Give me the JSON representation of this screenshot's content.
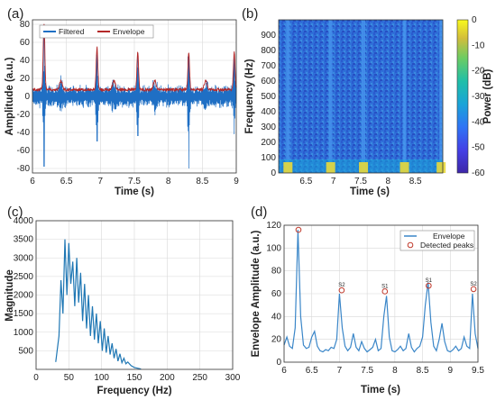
{
  "colors": {
    "filtered": "#1f6fc4",
    "envelope": "#b42828",
    "spectrum": "#1f77b4",
    "env_d": "#3a86c8",
    "peak_marker": "#c0392b"
  },
  "chart_data": [
    {
      "id": "a",
      "panel_label": "(a)",
      "type": "line",
      "xlabel": "Time (s)",
      "ylabel": "Amplitude (a.u.)",
      "xlim": [
        6,
        9
      ],
      "ylim": [
        -85,
        85
      ],
      "xticks": [
        "6",
        "6.5",
        "7",
        "7.5",
        "8",
        "8.5",
        "9"
      ],
      "yticks": [
        "-80",
        "-60",
        "-40",
        "-20",
        "0",
        "20",
        "40",
        "60",
        "80"
      ],
      "grid": true,
      "legend": "top-left",
      "beats": [
        {
          "t": 6.17,
          "pos": 80,
          "neg": -78
        },
        {
          "t": 6.95,
          "pos": 53,
          "neg": -50
        },
        {
          "t": 7.55,
          "pos": 48,
          "neg": -44
        },
        {
          "t": 8.3,
          "pos": 46,
          "neg": -80
        },
        {
          "t": 8.97,
          "pos": 47,
          "neg": -42
        }
      ],
      "series": [
        {
          "name": "Filtered"
        },
        {
          "name": "Envelope"
        }
      ]
    },
    {
      "id": "b",
      "panel_label": "(b)",
      "type": "heatmap",
      "xlabel": "Time (s)",
      "ylabel": "Frequency (Hz)",
      "xlim": [
        6,
        9
      ],
      "ylim": [
        0,
        1000
      ],
      "xticks": [
        "6.5",
        "7",
        "7.5",
        "8",
        "8.5"
      ],
      "yticks": [
        "0",
        "100",
        "200",
        "300",
        "400",
        "500",
        "600",
        "700",
        "800",
        "900"
      ],
      "colorbar": {
        "label": "Power (dB)",
        "range": [
          -60,
          0
        ],
        "ticks": [
          "0",
          "-10",
          "-20",
          "-30",
          "-40",
          "-50",
          "-60"
        ]
      },
      "vertical_streaks_s": [
        6.17,
        6.95,
        7.55,
        8.3,
        8.97
      ]
    },
    {
      "id": "c",
      "panel_label": "(c)",
      "type": "line",
      "xlabel": "Frequency (Hz)",
      "ylabel": "Magnitude",
      "xlim": [
        0,
        300
      ],
      "ylim": [
        0,
        4000
      ],
      "xticks": [
        "0",
        "50",
        "100",
        "150",
        "200",
        "250",
        "300"
      ],
      "yticks": [
        "500",
        "1000",
        "1500",
        "2000",
        "2500",
        "3000",
        "3500",
        "4000"
      ],
      "grid": true,
      "x": [
        30,
        35,
        38,
        41,
        44,
        47,
        50,
        53,
        56,
        59,
        62,
        65,
        68,
        71,
        74,
        77,
        80,
        83,
        86,
        89,
        92,
        95,
        98,
        101,
        104,
        107,
        110,
        113,
        116,
        119,
        122,
        125,
        128,
        131,
        134,
        137,
        140,
        145,
        150,
        160
      ],
      "y": [
        200,
        900,
        2400,
        1500,
        3500,
        2000,
        3400,
        2300,
        2900,
        1700,
        3000,
        1800,
        2600,
        1300,
        2300,
        1100,
        2000,
        900,
        1700,
        800,
        1500,
        700,
        1300,
        500,
        1100,
        450,
        900,
        400,
        700,
        300,
        550,
        220,
        420,
        180,
        300,
        150,
        200,
        100,
        50,
        10
      ]
    },
    {
      "id": "d",
      "panel_label": "(d)",
      "type": "line",
      "xlabel": "Time (s)",
      "ylabel": "Envelope Amplitude (a.u.)",
      "xlim": [
        6,
        9.5
      ],
      "ylim": [
        0,
        120
      ],
      "xticks": [
        "6",
        "6.5",
        "7",
        "7.5",
        "8",
        "8.5",
        "9",
        "9.5"
      ],
      "yticks": [
        "0",
        "20",
        "40",
        "60",
        "80",
        "100",
        "120"
      ],
      "grid": true,
      "legend": "top-right",
      "series": [
        {
          "name": "Envelope",
          "x": [
            6.0,
            6.05,
            6.1,
            6.15,
            6.2,
            6.25,
            6.3,
            6.35,
            6.4,
            6.45,
            6.5,
            6.55,
            6.6,
            6.65,
            6.7,
            6.75,
            6.8,
            6.85,
            6.9,
            6.95,
            7.0,
            7.05,
            7.1,
            7.15,
            7.2,
            7.25,
            7.3,
            7.35,
            7.4,
            7.45,
            7.5,
            7.55,
            7.6,
            7.65,
            7.7,
            7.75,
            7.8,
            7.85,
            7.9,
            7.95,
            8.0,
            8.05,
            8.1,
            8.15,
            8.2,
            8.25,
            8.3,
            8.35,
            8.4,
            8.45,
            8.5,
            8.55,
            8.6,
            8.65,
            8.7,
            8.75,
            8.8,
            8.85,
            8.9,
            8.95,
            9.0,
            9.05,
            9.1,
            9.15,
            9.2,
            9.25,
            9.3,
            9.35,
            9.4,
            9.45,
            9.5
          ],
          "y": [
            15,
            22,
            14,
            12,
            30,
            116,
            40,
            15,
            12,
            13,
            22,
            27,
            14,
            10,
            9,
            11,
            10,
            13,
            12,
            20,
            60,
            30,
            14,
            10,
            13,
            25,
            13,
            10,
            18,
            12,
            9,
            11,
            13,
            20,
            10,
            12,
            40,
            58,
            22,
            10,
            9,
            11,
            14,
            10,
            12,
            25,
            13,
            9,
            12,
            14,
            22,
            50,
            70,
            35,
            14,
            10,
            20,
            34,
            18,
            10,
            9,
            11,
            14,
            10,
            12,
            22,
            14,
            12,
            60,
            25,
            12
          ]
        },
        {
          "name": "Detected peaks",
          "x": [
            6.26,
            7.04,
            7.82,
            8.61,
            9.42
          ],
          "y": [
            116,
            63,
            62,
            67,
            64
          ]
        }
      ],
      "peak_labels": [
        "S2",
        "S1",
        "S1",
        "S2"
      ]
    }
  ]
}
